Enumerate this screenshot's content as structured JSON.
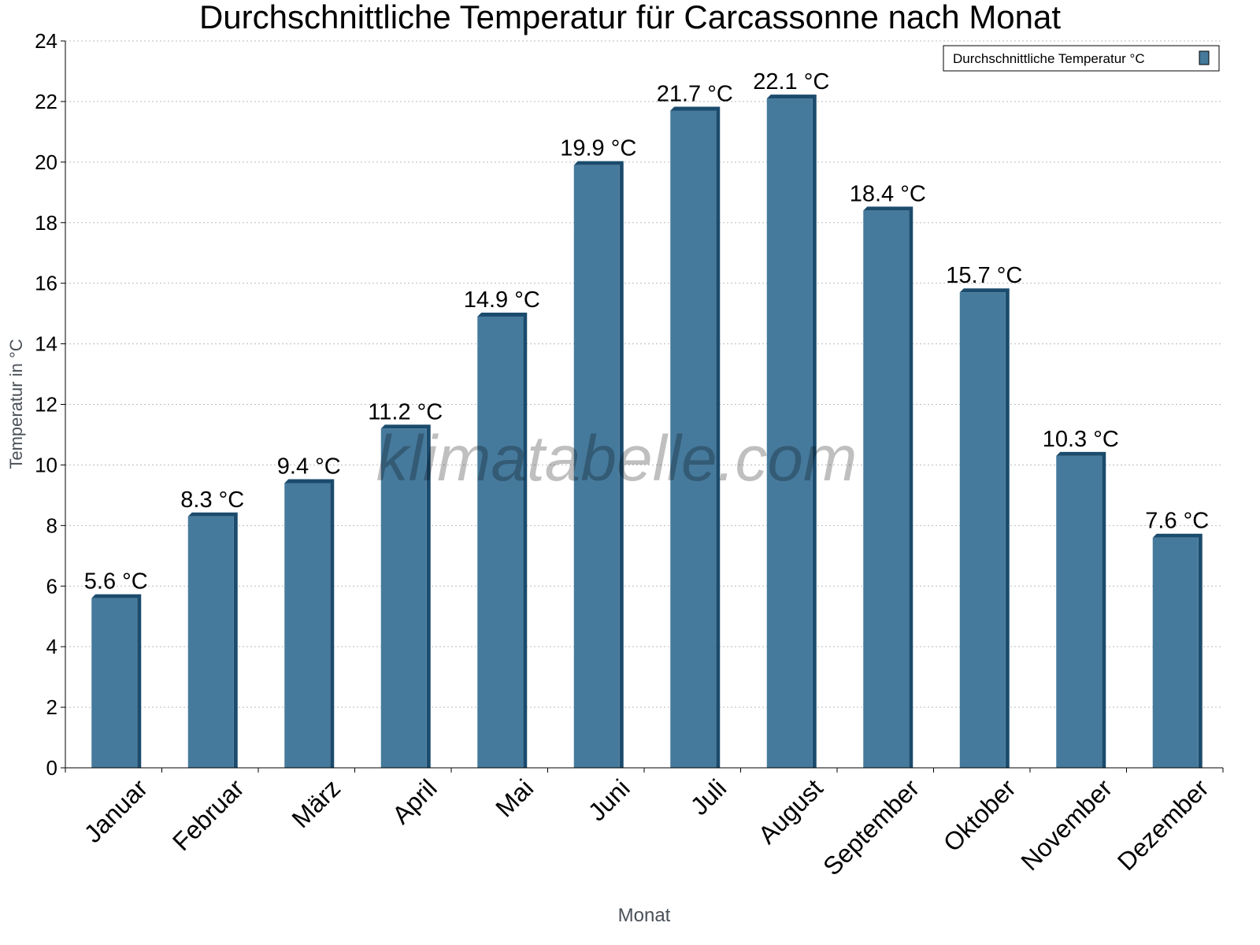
{
  "chart_data": {
    "type": "bar",
    "title": "Durchschnittliche Temperatur für Carcassonne nach Monat",
    "xlabel": "Monat",
    "ylabel": "Temperatur in °C",
    "categories": [
      "Januar",
      "Februar",
      "März",
      "April",
      "Mai",
      "Juni",
      "Juli",
      "August",
      "September",
      "Oktober",
      "November",
      "Dezember"
    ],
    "series": [
      {
        "name": "Durchschnittliche Temperatur °C",
        "values": [
          5.6,
          8.3,
          9.4,
          11.2,
          14.9,
          19.9,
          21.7,
          22.1,
          18.4,
          15.7,
          10.3,
          7.6
        ],
        "color": "#467a9c",
        "shade_color": "#1b4b6d"
      }
    ],
    "data_labels": [
      "5.6 °C",
      "8.3 °C",
      "9.4 °C",
      "11.2 °C",
      "14.9 °C",
      "19.9 °C",
      "21.7 °C",
      "22.1 °C",
      "18.4 °C",
      "15.7 °C",
      "10.3 °C",
      "7.6 °C"
    ],
    "ylim": [
      0,
      24
    ],
    "yticks": [
      0,
      2,
      4,
      6,
      8,
      10,
      12,
      14,
      16,
      18,
      20,
      22,
      24
    ],
    "grid": true,
    "legend_position": "top-right",
    "watermark": "klimatabelle.com"
  }
}
